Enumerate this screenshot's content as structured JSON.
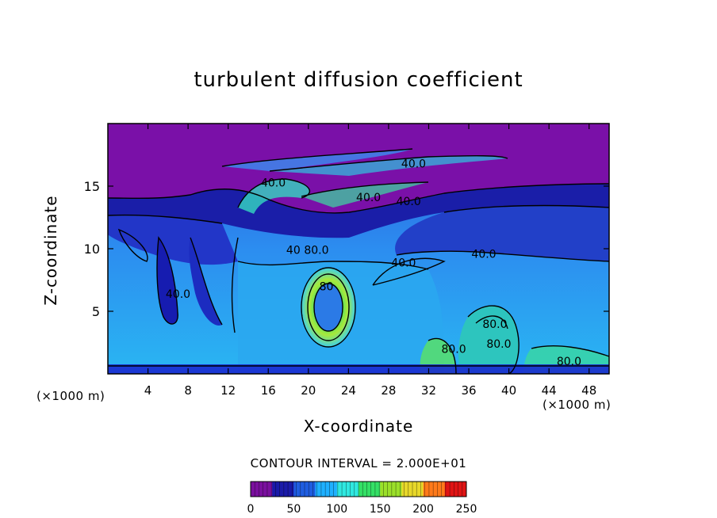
{
  "chart_data": {
    "type": "heatmap",
    "title": "turbulent diffusion coefficient",
    "xlabel": "X-coordinate",
    "ylabel": "Z-coordinate",
    "x_unit": "(×1000 m)",
    "y_unit": "(×1000 m)",
    "xlim": [
      0,
      50
    ],
    "ylim": [
      0,
      20
    ],
    "x_ticks": [
      4,
      8,
      12,
      16,
      20,
      24,
      28,
      32,
      36,
      40,
      44,
      48
    ],
    "y_ticks": [
      5,
      10,
      15
    ],
    "contour_interval_text": "CONTOUR INTERVAL = 2.000E+01",
    "colorbar": {
      "range": [
        0,
        250
      ],
      "ticks": [
        0,
        50,
        100,
        150,
        200,
        250
      ],
      "colors": [
        "#7a0f9e",
        "#1a1aa8",
        "#1f5de0",
        "#1fb0ff",
        "#2fe8e0",
        "#34e066",
        "#9be02a",
        "#e8d82a",
        "#ff7a1a",
        "#e01414"
      ]
    },
    "contour_labels": [
      {
        "text": "40.0",
        "x": 30.5,
        "z": 16.8
      },
      {
        "text": "40.0",
        "x": 16.5,
        "z": 15.3
      },
      {
        "text": "40.0",
        "x": 26.0,
        "z": 14.1
      },
      {
        "text": "40.0",
        "x": 30.0,
        "z": 13.8
      },
      {
        "text": "40.0",
        "x": 37.5,
        "z": 9.6
      },
      {
        "text": "40.0",
        "x": 29.5,
        "z": 8.9
      },
      {
        "text": "40",
        "x": 18.5,
        "z": 9.9
      },
      {
        "text": "80.0",
        "x": 20.8,
        "z": 9.9
      },
      {
        "text": "80",
        "x": 21.8,
        "z": 7.0
      },
      {
        "text": "40.0",
        "x": 7.0,
        "z": 6.4
      },
      {
        "text": "80.0",
        "x": 38.6,
        "z": 4.0
      },
      {
        "text": "80.0",
        "x": 39.0,
        "z": 2.4
      },
      {
        "text": "80.0",
        "x": 34.5,
        "z": 2.0
      },
      {
        "text": "80.0",
        "x": 46.0,
        "z": 1.0
      }
    ],
    "grid": false,
    "legend": "colorbar-bottom"
  }
}
